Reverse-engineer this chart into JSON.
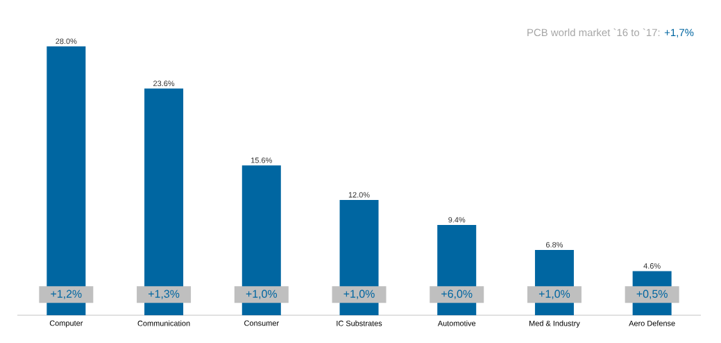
{
  "chart_data": {
    "type": "bar",
    "title": "PCB world market `16 to `17: ",
    "subtitle": "+1,7%",
    "categories": [
      "Computer",
      "Communication",
      "Consumer",
      "IC Substrates",
      "Automotive",
      "Med & Industry",
      "Aero Defense"
    ],
    "values": [
      28.0,
      23.6,
      15.6,
      12.0,
      9.4,
      6.8,
      4.6
    ],
    "color": "#0066a1",
    "value_labels": [
      "28.0%",
      "23.6%",
      "15.6%",
      "12.0%",
      "9.4%",
      "6.8%",
      "4.6%"
    ],
    "annotations": [
      "+1,2%",
      "+1,3%",
      "+1,0%",
      "+1,0%",
      "+6,0%",
      "+1,0%",
      "+0,5%"
    ]
  }
}
